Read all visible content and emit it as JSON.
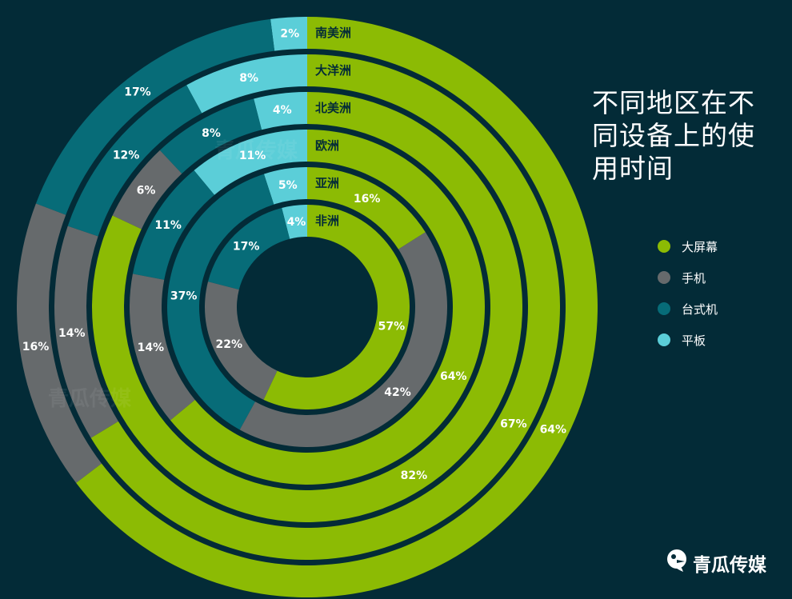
{
  "title": "不同地区在不同设备上的使用时间",
  "title_lines": [
    "不同地区在不",
    "同设备上的使",
    "用时间"
  ],
  "colors": {
    "background": "#032b37",
    "大屏幕": "#8cbb04",
    "手机": "#666a6c",
    "台式机": "#076c78",
    "平板": "#5bced8",
    "label_dark": "#032b37",
    "label_light": "#ffffff"
  },
  "legend": [
    {
      "label": "大屏幕",
      "color": "#8cbb04"
    },
    {
      "label": "手机",
      "color": "#666a6c"
    },
    {
      "label": "台式机",
      "color": "#076c78"
    },
    {
      "label": "平板",
      "color": "#5bced8"
    }
  ],
  "logo": {
    "text": "青瓜传媒",
    "icon": "cucumber-bird-icon"
  },
  "watermark": {
    "text": "青瓜传媒"
  },
  "chart_data": {
    "type": "radial-bar",
    "title": "不同地区在不同设备上的使用时间",
    "series_names": [
      "平板",
      "台式机",
      "手机",
      "大屏幕"
    ],
    "rings": [
      {
        "region": "非洲",
        "values": {
          "平板": 4,
          "台式机": 17,
          "手机": 22,
          "大屏幕": 57
        }
      },
      {
        "region": "亚洲",
        "values": {
          "平板": 5,
          "台式机": 37,
          "手机": 42,
          "大屏幕": 16
        }
      },
      {
        "region": "欧洲",
        "values": {
          "平板": 11,
          "台式机": 11,
          "手机": 14,
          "大屏幕": 64
        }
      },
      {
        "region": "北美洲",
        "values": {
          "平板": 4,
          "台式机": 8,
          "手机": 6,
          "大屏幕": 82
        }
      },
      {
        "region": "大洋洲",
        "values": {
          "平板": 8,
          "台式机": 12,
          "手机": 14,
          "大屏幕": 67
        }
      },
      {
        "region": "南美洲",
        "values": {
          "平板": 2,
          "台式机": 17,
          "手机": 16,
          "大屏幕": 64
        }
      }
    ]
  }
}
